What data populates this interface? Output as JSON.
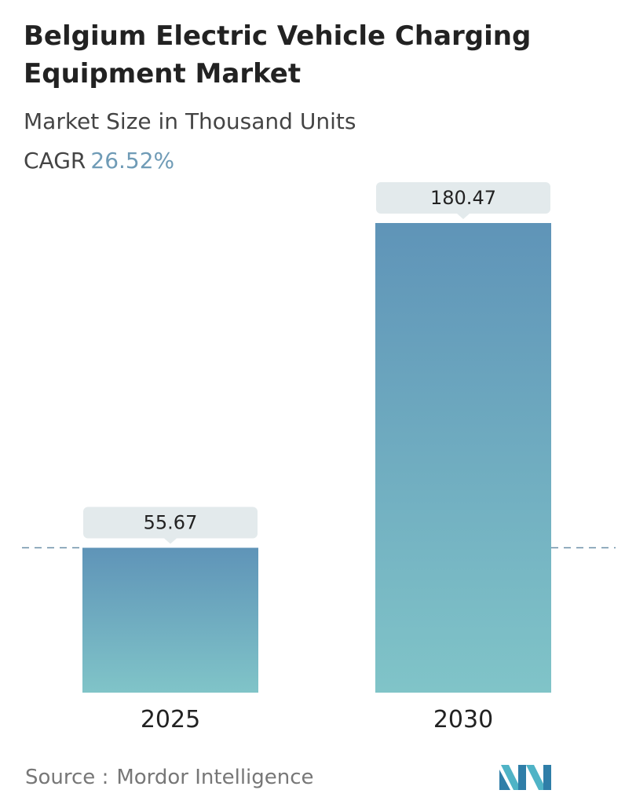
{
  "header": {
    "title": "Belgium Electric Vehicle Charging Equipment Market",
    "subtitle": "Market Size in Thousand Units",
    "cagr_label": "CAGR",
    "cagr_value": "26.52%"
  },
  "chart_data": {
    "type": "bar",
    "title": "Belgium Electric Vehicle Charging Equipment Market",
    "subtitle": "Market Size in Thousand Units",
    "categories": [
      "2025",
      "2030"
    ],
    "values": [
      55.67,
      180.47
    ],
    "value_labels": [
      "55.67",
      "180.47"
    ],
    "xlabel": "",
    "ylabel": "",
    "ylim": [
      0,
      180.47
    ],
    "grid": false,
    "legend": "none",
    "reference_line": {
      "value": 55.67,
      "style": "dashed"
    },
    "colors": {
      "bar_top": "#5f94b8",
      "bar_bottom": "#80c4c8",
      "label_bg": "#e3eaec",
      "ref_line": "#6b8fa8"
    }
  },
  "footer": {
    "source_label": "Source :",
    "source_name": "Mordor Intelligence",
    "logo_icon": "mordor-intelligence-logo"
  }
}
